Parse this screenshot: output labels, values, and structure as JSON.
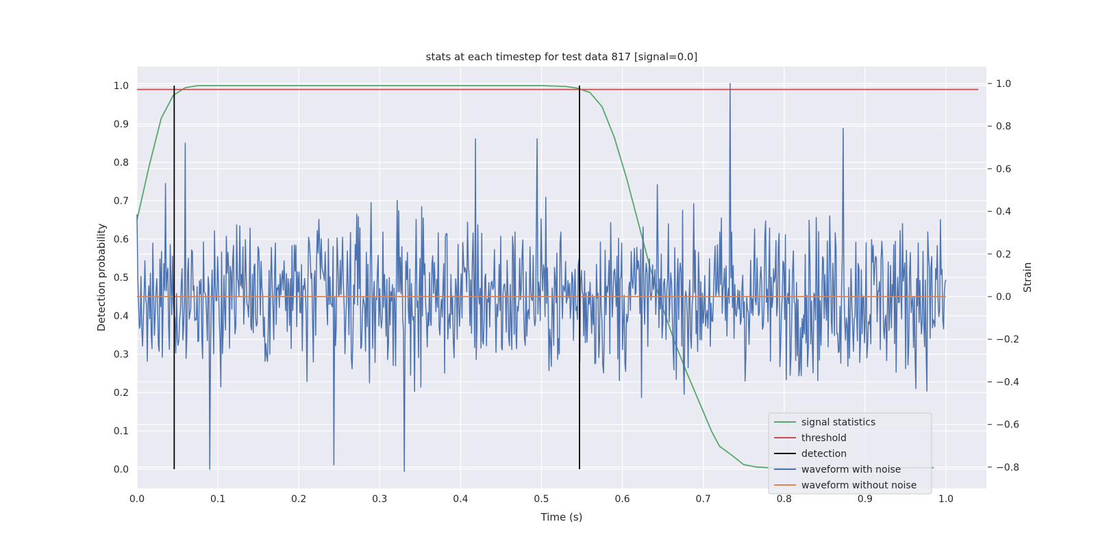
{
  "chart_data": {
    "type": "line",
    "title": "stats at each timestep for test data 817 [signal=0.0]",
    "xlabel": "Time (s)",
    "ylabel_left": "Detection probability",
    "ylabel_right": "Strain",
    "xlim": [
      0.0,
      1.05
    ],
    "ylim_left": [
      -0.05,
      1.05
    ],
    "ylim_right": [
      -0.9,
      1.08
    ],
    "x_ticks": [
      0.0,
      0.1,
      0.2,
      0.3,
      0.4,
      0.5,
      0.6,
      0.7,
      0.8,
      0.9,
      1.0
    ],
    "x_tick_labels": [
      "0.0",
      "0.1",
      "0.2",
      "0.3",
      "0.4",
      "0.5",
      "0.6",
      "0.7",
      "0.8",
      "0.9",
      "1.0"
    ],
    "left_ticks": [
      0.0,
      0.1,
      0.2,
      0.3,
      0.4,
      0.5,
      0.6,
      0.7,
      0.8,
      0.9,
      1.0
    ],
    "left_tick_labels": [
      "0.0",
      "0.1",
      "0.2",
      "0.3",
      "0.4",
      "0.5",
      "0.6",
      "0.7",
      "0.8",
      "0.9",
      "1.0"
    ],
    "right_ticks": [
      -0.8,
      -0.6,
      -0.4,
      -0.2,
      0.0,
      0.2,
      0.4,
      0.6,
      0.8,
      1.0
    ],
    "right_tick_labels": [
      "−0.8",
      "−0.6",
      "−0.4",
      "−0.2",
      "0.0",
      "0.2",
      "0.4",
      "0.6",
      "0.8",
      "1.0"
    ],
    "grid": true,
    "legend_position": "lower-right",
    "colors": {
      "signal": "#55a868",
      "threshold": "#c44e52",
      "detection": "#000000",
      "noisy": "#4c72b0",
      "clean": "#dd8452",
      "background": "#eaeaf2",
      "grid": "#ffffff"
    },
    "series": [
      {
        "name": "signal statistics",
        "axis": "left",
        "x": [
          0.0,
          0.015,
          0.03,
          0.045,
          0.06,
          0.075,
          0.1,
          0.2,
          0.3,
          0.4,
          0.5,
          0.53,
          0.545,
          0.56,
          0.575,
          0.59,
          0.605,
          0.62,
          0.635,
          0.65,
          0.665,
          0.68,
          0.695,
          0.71,
          0.72,
          0.735,
          0.75,
          0.765,
          0.78,
          0.8,
          0.9,
          0.985
        ],
        "values": [
          0.65,
          0.79,
          0.915,
          0.975,
          0.995,
          1.0,
          1.0,
          1.0,
          1.0,
          1.0,
          1.0,
          0.998,
          0.993,
          0.982,
          0.945,
          0.865,
          0.76,
          0.64,
          0.52,
          0.42,
          0.33,
          0.25,
          0.175,
          0.1,
          0.06,
          0.037,
          0.012,
          0.006,
          0.004,
          0.003,
          0.003,
          0.004
        ]
      },
      {
        "name": "threshold",
        "axis": "left",
        "x": [
          0.0,
          1.04
        ],
        "values": [
          0.99,
          0.99
        ]
      },
      {
        "name": "detection",
        "axis": "left",
        "segments": [
          {
            "x": 0.046,
            "y_range": [
              0.0,
              1.0
            ]
          },
          {
            "x": 0.547,
            "y_range": [
              0.0,
              1.0
            ]
          }
        ]
      },
      {
        "name": "waveform with noise",
        "axis": "right",
        "x_range": [
          0.0,
          1.0
        ],
        "n_points": 1024,
        "peak_values": [
          {
            "x": 0.733,
            "y": 1.0
          },
          {
            "x": 0.873,
            "y": 0.79
          },
          {
            "x": 0.06,
            "y": 0.72
          },
          {
            "x": 0.418,
            "y": 0.74
          },
          {
            "x": 0.495,
            "y": 0.74
          },
          {
            "x": 0.33,
            "y": -0.82
          },
          {
            "x": 0.09,
            "y": -0.81
          },
          {
            "x": 0.243,
            "y": -0.79
          }
        ],
        "typical_range": [
          -0.35,
          0.35
        ]
      },
      {
        "name": "waveform without noise",
        "axis": "right",
        "x": [
          0.0,
          1.0
        ],
        "values": [
          0.0,
          0.0
        ]
      }
    ],
    "legend": [
      "signal statistics",
      "threshold",
      "detection",
      "waveform with noise",
      "waveform without noise"
    ]
  }
}
